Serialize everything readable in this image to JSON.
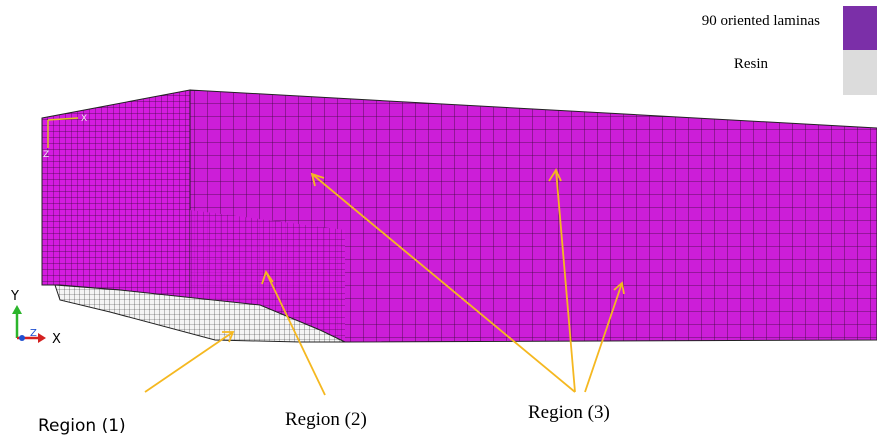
{
  "legend": {
    "items": [
      {
        "label": "90 oriented laminas",
        "color": "#7b2fa8"
      },
      {
        "label": "Resin",
        "color": "#dcdcdc"
      }
    ]
  },
  "regions": [
    "Region (1)",
    "Region (2)",
    "Region (3)"
  ],
  "triad": {
    "y": "Y",
    "z": "Z",
    "x": "X"
  },
  "local_axes": {
    "x": "X",
    "z": "Z"
  }
}
